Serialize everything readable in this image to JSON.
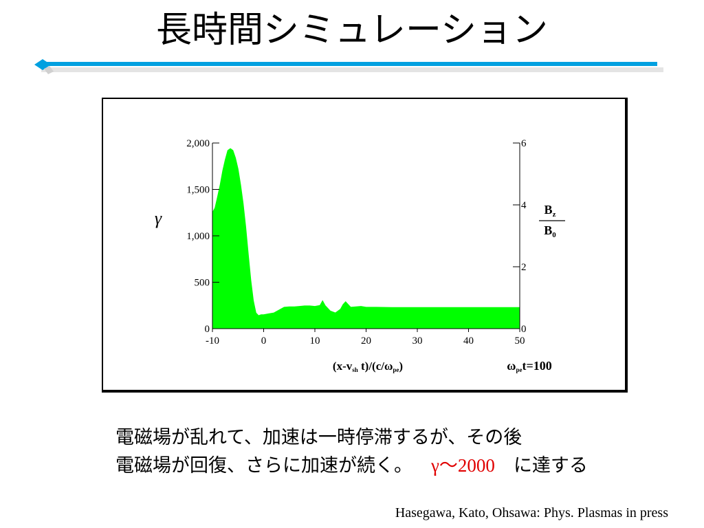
{
  "slide": {
    "title": "長時間シミュレーション",
    "caption_line1": "電磁場が乱れて、加速は一時停滞するが、その後",
    "caption_line2_prefix": "電磁場が回復、さらに加速が続く。",
    "caption_gamma": "γ〜2000",
    "caption_line2_suffix": "に達する",
    "citation": "Hasegawa, Kato, Ohsawa: Phys. Plasmas in press",
    "accent_color": "#00a0e0",
    "highlight_color": "#e00000"
  },
  "chart_data": {
    "type": "area",
    "color": "#00ff00",
    "y_label": "γ",
    "y2_label_num": "B",
    "y2_label_num_sub": "z",
    "y2_label_den": "B",
    "y2_label_den_sub": "0",
    "x_label_parts": [
      "(x-v",
      "sh",
      " t)/(c/ω",
      "pe",
      ")"
    ],
    "time_label_parts": [
      "ω",
      "pe",
      "t=100"
    ],
    "xlim": [
      -10,
      50
    ],
    "ylim": [
      0,
      2000
    ],
    "y2lim": [
      0,
      6
    ],
    "x_ticks": [
      "-10",
      "0",
      "10",
      "20",
      "30",
      "40",
      "50"
    ],
    "y_ticks": [
      "0",
      "500",
      "1,000",
      "1,500",
      "2,000"
    ],
    "y2_ticks": [
      "0",
      "2",
      "4",
      "6"
    ],
    "x": [
      -10,
      -9.5,
      -9,
      -8.5,
      -8,
      -7.5,
      -7,
      -6.5,
      -6,
      -5.5,
      -5,
      -4.5,
      -4,
      -3.5,
      -3,
      -2.5,
      -2,
      -1.5,
      -1,
      -0.5,
      0,
      1,
      2,
      3,
      4,
      5,
      6,
      7,
      8,
      9,
      10,
      11,
      11.5,
      12,
      13,
      14,
      15,
      15.5,
      16,
      17,
      18,
      19,
      20,
      22,
      25,
      30,
      35,
      40,
      45,
      50
    ],
    "values": [
      1250,
      1300,
      1420,
      1550,
      1700,
      1820,
      1920,
      1940,
      1920,
      1840,
      1720,
      1550,
      1350,
      1100,
      800,
      520,
      300,
      170,
      140,
      150,
      150,
      160,
      170,
      200,
      230,
      235,
      235,
      240,
      245,
      245,
      240,
      250,
      300,
      250,
      190,
      170,
      210,
      260,
      290,
      230,
      235,
      240,
      230,
      230,
      228,
      228,
      228,
      228,
      228,
      228
    ]
  }
}
